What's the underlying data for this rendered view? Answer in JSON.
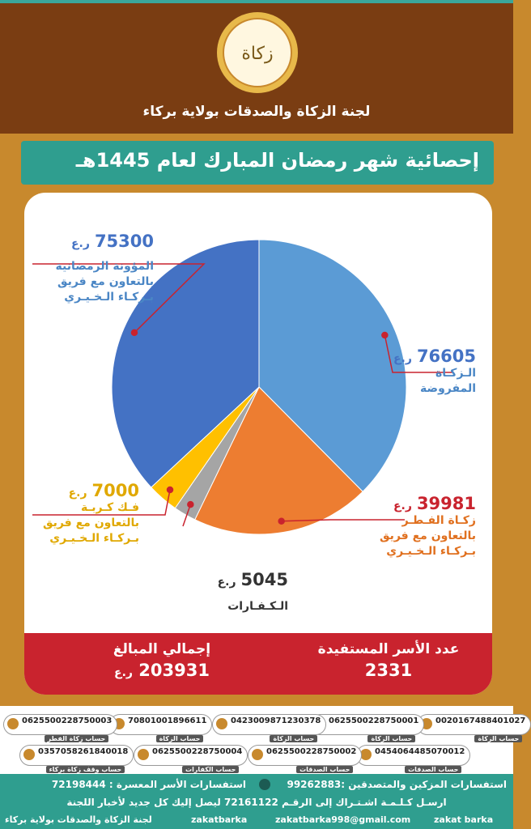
{
  "org_name": "لجنة الزكاة والصدقات بولاية بركاء",
  "logo_text": "زكاة",
  "title": "إحصائية شهر رمضان المبارك لعام 1445هـ",
  "currency": "ر.ع",
  "chart_data": {
    "type": "pie",
    "title": "إحصائية شهر رمضان المبارك لعام 1445هـ",
    "slices": [
      {
        "label": "الزكاة المفروضة",
        "value": 76605,
        "color": "#5b9bd5"
      },
      {
        "label": "زكاة الفطر بالتعاون مع فريق بركاء الخيري",
        "value": 39981,
        "color": "#ed7d31"
      },
      {
        "label": "الكفارات",
        "value": 5045,
        "color": "#a5a5a5"
      },
      {
        "label": "فك كربة بالتعاون مع فريق بركاء الخيري",
        "value": 7000,
        "color": "#ffc000"
      },
      {
        "label": "المؤونة الرمضانية بالتعاون مع فريق بركاء الخيري",
        "value": 75300,
        "color": "#4472c4"
      }
    ]
  },
  "labels": {
    "zakat_value": "76605",
    "zakat_l1": "الـزكـاة",
    "zakat_l2": "المفروضة",
    "fitr_value": "39981",
    "fitr_l1": "زكـاة الفـطـر",
    "fitr_l2": "بالتعاون مع فريق",
    "fitr_l3": "بـركـاء الـخـيـري",
    "kaffarat_value": "5045",
    "kaffarat_l1": "الـكـفـارات",
    "fak_value": "7000",
    "fak_l1": "فـك كـربـة",
    "fak_l2": "بالتعاون مع فريق",
    "fak_l3": "بـركـاء الـخـيـري",
    "muna_value": "75300",
    "muna_l1": "المؤونة الرمضانية",
    "muna_l2": "بالتعاون مع فريق",
    "muna_l3": "بـركـاء الـخـيـري"
  },
  "totals": {
    "families_label": "عدد الأسر المستفيدة",
    "families_value": "2331",
    "amount_label": "إجمالي المبالغ",
    "amount_value": "203931"
  },
  "accounts": [
    {
      "number": "0020167488401027",
      "label": "حساب الزكاة"
    },
    {
      "number": "0625500228750001",
      "label": "حساب الزكاة"
    },
    {
      "number": "0423009871230378",
      "label": "حساب الزكاة"
    },
    {
      "number": "70801001896611",
      "label": "حساب الزكاة"
    },
    {
      "number": "0625500228750003",
      "label": "حساب زكاة الفطر"
    },
    {
      "number": "0454064485070012",
      "label": "حساب الصدقات"
    },
    {
      "number": "0625500228750002",
      "label": "حساب الصدقات"
    },
    {
      "number": "0625500228750004",
      "label": "حساب الكفارات"
    },
    {
      "number": "0357058261840018",
      "label": "حساب وقف زكاة بركاء"
    }
  ],
  "footer": {
    "inquiry_donors": "استفسارات المزكين والمتصدقين :",
    "inquiry_donors_phone": "99262883",
    "inquiry_families": "استفسارات الأسر المعسرة :",
    "inquiry_families_phone": "72198444",
    "subscribe": "ارسـل كـلـمـة اشـتـراك إلى الرقـم 72161122 ليصل إليك كل جديد لأخبار اللجنة",
    "social_handle": "zakat barka",
    "email": "zakatbarka998@gmail.com",
    "instagram": "zakatbarka",
    "x_name": "لجنة الزكاة والصدقات بولاية بركاء"
  }
}
